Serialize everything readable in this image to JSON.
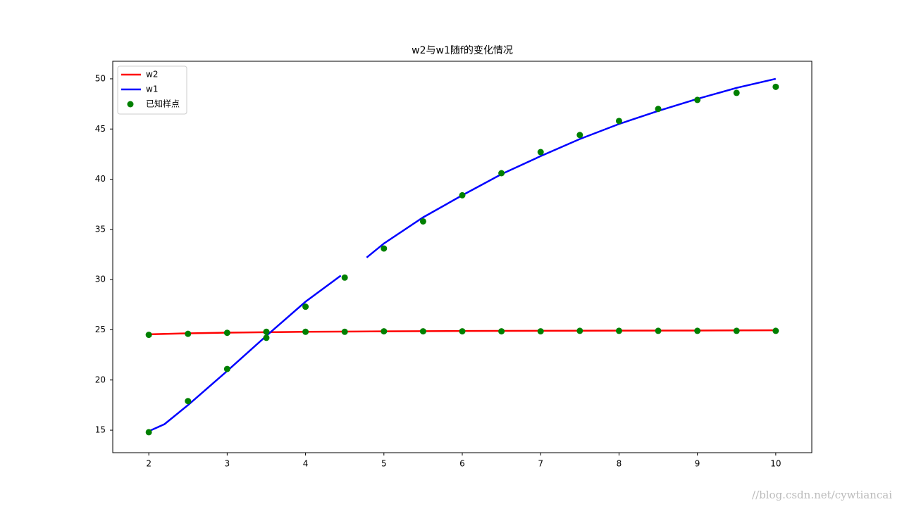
{
  "chart_data": {
    "type": "line",
    "title": "w2与w1随f的变化情况",
    "watermark": "//blog.csdn.net/cywtiancai",
    "xlim": [
      1.54,
      10.46
    ],
    "ylim": [
      12.76,
      51.75
    ],
    "xticks": [
      2,
      3,
      4,
      5,
      6,
      7,
      8,
      9,
      10
    ],
    "yticks": [
      15,
      20,
      25,
      30,
      35,
      40,
      45,
      50
    ],
    "legend": "upper-left",
    "grid": false,
    "series": [
      {
        "name": "w2",
        "type": "line",
        "color": "#ff0000",
        "x": [
          2,
          2.5,
          3,
          3.5,
          4,
          5,
          6,
          7,
          8,
          9,
          10
        ],
        "values": [
          24.55,
          24.65,
          24.72,
          24.76,
          24.8,
          24.85,
          24.88,
          24.9,
          24.92,
          24.93,
          24.95
        ]
      },
      {
        "name": "w1",
        "type": "line",
        "color": "#0000ff",
        "x": [
          2,
          2.2,
          2.5,
          3,
          3.5,
          4,
          4.45,
          4.6,
          4.78,
          5,
          5.5,
          6,
          6.5,
          7,
          7.5,
          8,
          8.5,
          9,
          9.5,
          10
        ],
        "values": [
          14.9,
          15.6,
          17.5,
          20.9,
          24.4,
          27.8,
          30.4,
          null,
          32.2,
          33.6,
          36.2,
          38.4,
          40.5,
          42.3,
          44.0,
          45.5,
          46.8,
          48.0,
          49.1,
          50.0
        ]
      },
      {
        "name": "已知样点",
        "type": "scatter",
        "color": "#008000",
        "x": [
          2,
          2.5,
          3,
          3.5,
          4,
          4.5,
          5,
          5.5,
          6,
          6.5,
          7,
          7.5,
          8,
          8.5,
          9,
          9.5,
          10,
          2,
          2.5,
          3,
          3.5,
          4,
          4.5,
          5,
          5.5,
          6,
          6.5,
          7,
          7.5,
          8,
          8.5,
          9,
          9.5,
          10
        ],
        "values": [
          14.8,
          17.9,
          21.1,
          24.2,
          27.3,
          30.2,
          33.1,
          35.8,
          38.4,
          40.6,
          42.7,
          44.4,
          45.8,
          47.0,
          47.9,
          48.6,
          49.2,
          24.5,
          24.6,
          24.7,
          24.8,
          24.8,
          24.8,
          24.85,
          24.85,
          24.85,
          24.85,
          24.85,
          24.9,
          24.9,
          24.9,
          24.9,
          24.9,
          24.9
        ]
      }
    ]
  }
}
